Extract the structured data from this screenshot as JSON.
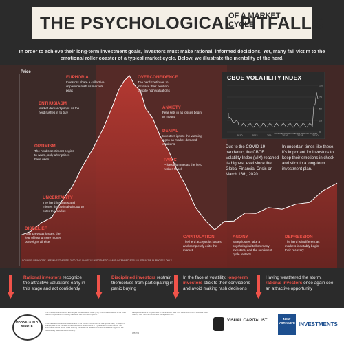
{
  "header": {
    "title_main": "THE PSYCHOLOGICAL PITFALLS",
    "title_side": "OF A MARKET\nCYCLE"
  },
  "intro": "In order to achieve their long-term investment goals, investors must make rational, informed decisions. Yet, many fall victim to the emotional roller coaster of a typical market cycle. Below, we illustrate the mentality of the herd.",
  "chart_data": {
    "type": "line",
    "title": "",
    "ylabel": "Price",
    "xlabel": "",
    "phases": [
      {
        "title": "DISBELIEF",
        "desc": "After previous losses, the fear of losing more money outweighs all else"
      },
      {
        "title": "UNCERTAINTY",
        "desc": "The herd hesitates and misses the optimal window to enter the market"
      },
      {
        "title": "OPTIMISM",
        "desc": "The herd's sentiment begins to warm, only after prices have risen"
      },
      {
        "title": "ENTHUSIASM",
        "desc": "Market demand jumps as the herd rushes in to buy"
      },
      {
        "title": "EUPHORIA",
        "desc": "Investors share a collective dopamine rush as markets peak"
      },
      {
        "title": "OVERCONFIDENCE",
        "desc": "The herd continues to increase their position despite high valuations"
      },
      {
        "title": "ANXIETY",
        "desc": "Fear sets in as losses begin to mount"
      },
      {
        "title": "DENIAL",
        "desc": "Investors ignore the warning signs as market demand weakens"
      },
      {
        "title": "PANIC",
        "desc": "Prices plummet as the herd rushes to sell"
      },
      {
        "title": "CAPITULATION",
        "desc": "The herd accepts its losses and completely exits the market"
      },
      {
        "title": "AGONY",
        "desc": "Steep losses take a psychological toll on many investors, and the sentiment cycle restarts"
      },
      {
        "title": "DEPRESSION",
        "desc": "The herd is indifferent as markets inevitably begin their recovery"
      }
    ]
  },
  "source": "SOURCE: NEW YORK LIFE INVESTMENTS, 2020. THE CHART IS HYPOTHETICAL AND INTENDED FOR ILLUSTRATIVE PURPOSES ONLY",
  "vix": {
    "title": "CBOE VOLATILITY INDEX",
    "x_ticks": [
      "2010",
      "2012",
      "2014",
      "2016",
      "2018",
      "2020"
    ],
    "y_ticks": [
      "100",
      "75",
      "50",
      "25",
      "0"
    ],
    "source": "SOURCE: MACROTRENDS, MARCH 18, 2020",
    "note1": "Due to the COVID-19 pandemic, the CBOE Volatility Index (VIX) reached its highest level since the Global Financial Crisis on March 16th, 2020.",
    "note2": "In uncertain times like these, it's important for investors to keep their emotions in check and stick to a long-term investment plan."
  },
  "bottom": [
    {
      "red": "Rational investors",
      "text": "recognize the attractive valuations early in this stage and act confidently"
    },
    {
      "red": "Disciplined investors",
      "text": "restrain themselves from participating in panic buying"
    },
    {
      "pre": "In the face of volatility,",
      "red": "long-term investors",
      "text": "stick to their convictions and avoid making rash decisions"
    },
    {
      "pre": "Having weathered the storm,",
      "red": "rational investors",
      "text": "once again see an attractive opportunity"
    }
  ],
  "footer": {
    "logo_markets": "MARKETS IN A MINUTE",
    "logo_vc": "VISUAL CAPITALIST",
    "logo_nyl": "NEW YORK LIFE",
    "logo_inv": "INVESTMENTS",
    "fine1": "The Chicago Board Options Exchange's CBOE Volatility Index (VIX) is a popular measure of the stock market's expectation of volatility based on S&P 500 index options.",
    "fine2": "This material represents an assessment of the market environment as of a specific date, is subject to change, and is not intended to be a forecast of future events or a guarantee of future results. This information should not be relied upon by the reader as research or investment advice regarding the funds or any particular issuer/security.",
    "fine3": "Past performance is no guarantee of future results. New York Life Investments is a service mark used by New York Life Investment Management LLC.",
    "code": "1853763"
  }
}
